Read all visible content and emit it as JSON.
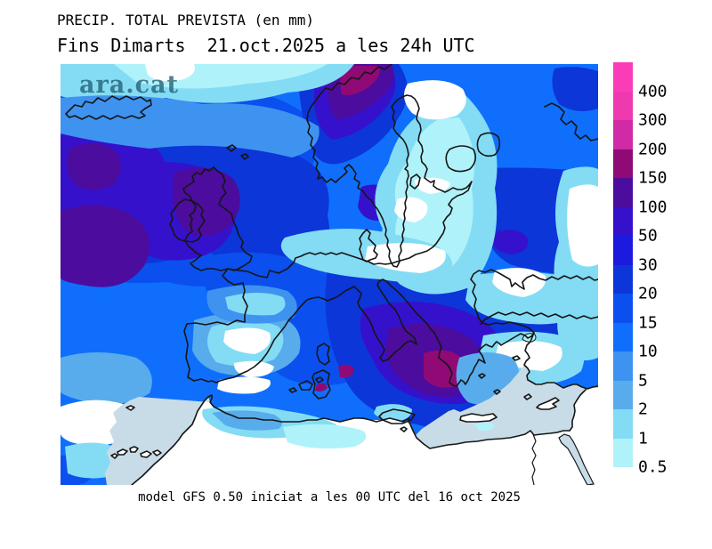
{
  "header": {
    "title": "PRECIP. TOTAL PREVISTA (en mm)",
    "subtitle": "Fins Dimarts  21.oct.2025 a les 24h UTC"
  },
  "watermark": {
    "text": "ara.cat"
  },
  "footer": {
    "caption": "model GFS 0.50 iniciat a les 00 UTC del 16 oct 2025"
  },
  "legend": {
    "units": "mm",
    "labels": [
      "400",
      "300",
      "200",
      "150",
      "100",
      "50",
      "30",
      "20",
      "15",
      "10",
      "5",
      "2",
      "1",
      "0.5"
    ],
    "colors": [
      "#FA3CB8",
      "#EE3AAE",
      "#D02AA6",
      "#8F0A74",
      "#4C0C9E",
      "#3511CC",
      "#1D1ADF",
      "#0C36D8",
      "#0B50EE",
      "#0F6FFC",
      "#3F93F0",
      "#58ACEC",
      "#83DCF4",
      "#B0F2FA"
    ]
  },
  "map": {
    "colors": {
      "sea_dry": "#C8DCE8",
      "land_dry": "#FFFFFF",
      "coastline": "#161616"
    }
  },
  "chart_data": {
    "type": "heatmap",
    "title": "PRECIP. TOTAL PREVISTA (en mm)",
    "subtitle": "Fins Dimarts  21.oct.2025 a les 24h UTC",
    "caption": "model GFS 0.50 iniciat a les 00 UTC del 16 oct 2025",
    "legend_position": "right",
    "scale_values_mm": [
      0.5,
      1,
      2,
      5,
      10,
      15,
      20,
      30,
      50,
      100,
      150,
      200,
      300,
      400
    ],
    "scale_colors": [
      "#B0F2FA",
      "#83DCF4",
      "#58ACEC",
      "#3F93F0",
      "#0F6FFC",
      "#0B50EE",
      "#0C36D8",
      "#1D1ADF",
      "#3511CC",
      "#4C0C9E",
      "#8F0A74",
      "#D02AA6",
      "#EE3AAE",
      "#FA3CB8"
    ]
  }
}
